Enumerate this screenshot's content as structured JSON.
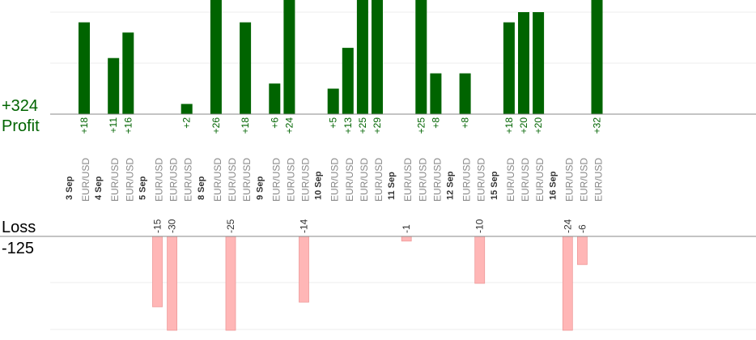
{
  "chart_data": {
    "type": "bar",
    "title": "",
    "xlabel": "",
    "ylabel": "",
    "profit": {
      "label": "Profit",
      "total": "+324",
      "color": "#006400",
      "ylim": [
        0,
        25
      ]
    },
    "loss": {
      "label": "Loss",
      "total": "-125",
      "color": "#ffb6b6",
      "ylim": [
        0,
        20
      ]
    },
    "categories": [
      {
        "label": "3 Sep",
        "trades": [
          {
            "pair": "EUR/USD",
            "value": 18
          }
        ]
      },
      {
        "label": "4 Sep",
        "trades": [
          {
            "pair": "EUR/USD",
            "value": 11
          },
          {
            "pair": "EUR/USD",
            "value": 16
          }
        ]
      },
      {
        "label": "5 Sep",
        "trades": [
          {
            "pair": "EUR/USD",
            "value": -15
          },
          {
            "pair": "EUR/USD",
            "value": -30
          },
          {
            "pair": "EUR/USD",
            "value": 2
          }
        ]
      },
      {
        "label": "8 Sep",
        "trades": [
          {
            "pair": "EUR/USD",
            "value": 26
          },
          {
            "pair": "EUR/USD",
            "value": -25
          },
          {
            "pair": "EUR/USD",
            "value": 18
          }
        ]
      },
      {
        "label": "9 Sep",
        "trades": [
          {
            "pair": "EUR/USD",
            "value": 6
          },
          {
            "pair": "EUR/USD",
            "value": 24
          },
          {
            "pair": "EUR/USD",
            "value": -14
          }
        ]
      },
      {
        "label": "10 Sep",
        "trades": [
          {
            "pair": "EUR/USD",
            "value": 5
          },
          {
            "pair": "EUR/USD",
            "value": 13
          },
          {
            "pair": "EUR/USD",
            "value": 25
          },
          {
            "pair": "EUR/USD",
            "value": 29
          }
        ]
      },
      {
        "label": "11 Sep",
        "trades": [
          {
            "pair": "EUR/USD",
            "value": -1
          },
          {
            "pair": "EUR/USD",
            "value": 25
          },
          {
            "pair": "EUR/USD",
            "value": 8
          }
        ]
      },
      {
        "label": "12 Sep",
        "trades": [
          {
            "pair": "EUR/USD",
            "value": 8
          },
          {
            "pair": "EUR/USD",
            "value": -10
          }
        ]
      },
      {
        "label": "15 Sep",
        "trades": [
          {
            "pair": "EUR/USD",
            "value": 18
          },
          {
            "pair": "EUR/USD",
            "value": 20
          },
          {
            "pair": "EUR/USD",
            "value": 20
          }
        ]
      },
      {
        "label": "16 Sep",
        "trades": [
          {
            "pair": "EUR/USD",
            "value": -24
          },
          {
            "pair": "EUR/USD",
            "value": -6
          },
          {
            "pair": "EUR/USD",
            "value": 32
          }
        ]
      }
    ],
    "grid": true,
    "legend": "none"
  }
}
